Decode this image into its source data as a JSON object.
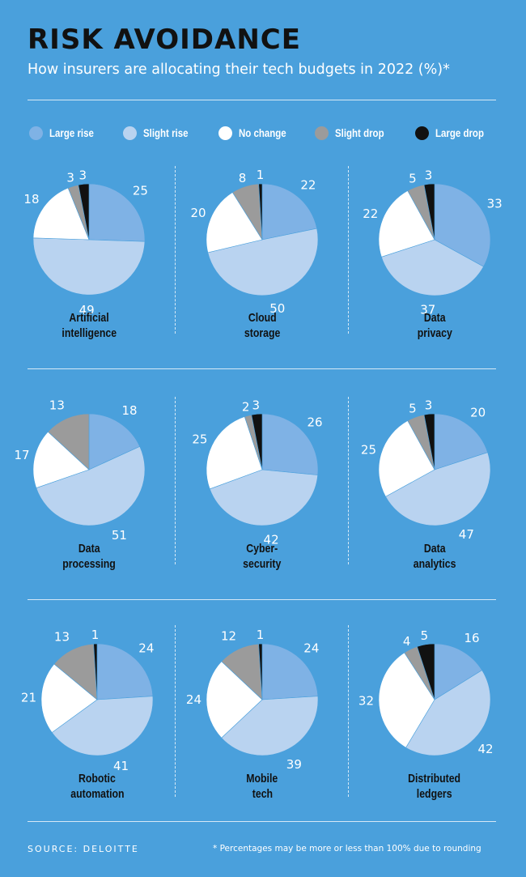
{
  "header": {
    "title": "RISK AVOIDANCE",
    "subtitle": "How insurers are allocating their tech budgets in 2022 (%)*"
  },
  "legend": [
    {
      "label": "Large rise",
      "color": "#7fb2e5"
    },
    {
      "label": "Slight rise",
      "color": "#b9d3f0"
    },
    {
      "label": "No change",
      "color": "#ffffff"
    },
    {
      "label": "Slight drop",
      "color": "#9b9b9b"
    },
    {
      "label": "Large drop",
      "color": "#111111"
    }
  ],
  "chart_data": [
    {
      "type": "pie",
      "title": "Artificial intelligence",
      "title_lines": [
        "Artificial",
        "intelligence"
      ],
      "categories": [
        "Large rise",
        "Slight rise",
        "No change",
        "Slight drop",
        "Large drop"
      ],
      "values": [
        25,
        49,
        18,
        3,
        3
      ]
    },
    {
      "type": "pie",
      "title": "Cloud storage",
      "title_lines": [
        "Cloud",
        "storage"
      ],
      "categories": [
        "Large rise",
        "Slight rise",
        "No change",
        "Slight drop",
        "Large drop"
      ],
      "values": [
        22,
        50,
        20,
        8,
        1
      ]
    },
    {
      "type": "pie",
      "title": "Data privacy",
      "title_lines": [
        "Data",
        "privacy"
      ],
      "categories": [
        "Large rise",
        "Slight rise",
        "No change",
        "Slight drop",
        "Large drop"
      ],
      "values": [
        33,
        37,
        22,
        5,
        3
      ]
    },
    {
      "type": "pie",
      "title": "Data processing",
      "title_lines": [
        "Data",
        "processing"
      ],
      "categories": [
        "Large rise",
        "Slight rise",
        "No change",
        "Slight drop",
        "Large drop"
      ],
      "values": [
        18,
        51,
        17,
        13,
        0
      ]
    },
    {
      "type": "pie",
      "title": "Cyber-security",
      "title_lines": [
        "Cyber-",
        "security"
      ],
      "categories": [
        "Large rise",
        "Slight rise",
        "No change",
        "Slight drop",
        "Large drop"
      ],
      "values": [
        26,
        42,
        25,
        2,
        3
      ]
    },
    {
      "type": "pie",
      "title": "Data analytics",
      "title_lines": [
        "Data",
        "analytics"
      ],
      "categories": [
        "Large rise",
        "Slight rise",
        "No change",
        "Slight drop",
        "Large drop"
      ],
      "values": [
        20,
        47,
        25,
        5,
        3
      ]
    },
    {
      "type": "pie",
      "title": "Robotic automation",
      "title_lines": [
        "Robotic",
        "automation"
      ],
      "categories": [
        "Large rise",
        "Slight rise",
        "No change",
        "Slight drop",
        "Large drop"
      ],
      "values": [
        24,
        41,
        21,
        13,
        1
      ]
    },
    {
      "type": "pie",
      "title": "Mobile tech",
      "title_lines": [
        "Mobile",
        "tech"
      ],
      "categories": [
        "Large rise",
        "Slight rise",
        "No change",
        "Slight drop",
        "Large drop"
      ],
      "values": [
        24,
        39,
        24,
        12,
        1
      ]
    },
    {
      "type": "pie",
      "title": "Distributed ledgers",
      "title_lines": [
        "Distributed",
        "ledgers"
      ],
      "categories": [
        "Large rise",
        "Slight rise",
        "No change",
        "Slight drop",
        "Large drop"
      ],
      "values": [
        16,
        42,
        32,
        4,
        5
      ]
    }
  ],
  "footer": {
    "source": "SOURCE: DELOITTE",
    "note": "* Percentages may be more or less than 100% due to rounding"
  }
}
